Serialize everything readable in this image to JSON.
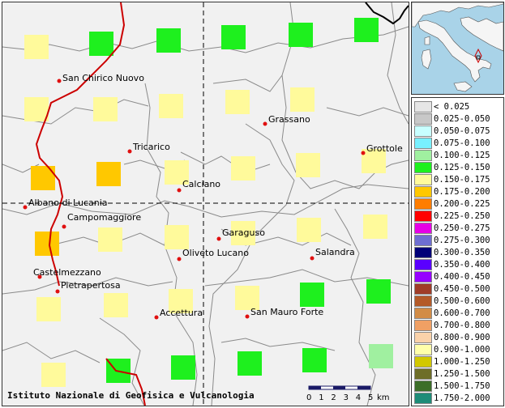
{
  "credit": "Istituto Nazionale di Geofisica e Vulcanologia",
  "scale_bar": {
    "ticks": [
      "0",
      "1",
      "2",
      "3",
      "4",
      "5"
    ],
    "unit": "km"
  },
  "towns": [
    {
      "name": "San Chirico Nuovo"
    },
    {
      "name": "Grassano"
    },
    {
      "name": "Tricarico"
    },
    {
      "name": "Grottole"
    },
    {
      "name": "Calciano"
    },
    {
      "name": "Albano di Lucania"
    },
    {
      "name": "Campomaggiore"
    },
    {
      "name": "Garaguso"
    },
    {
      "name": "Oliveto Lucano"
    },
    {
      "name": "Salandra"
    },
    {
      "name": "Castelmezzano"
    },
    {
      "name": "Pietrapertosa"
    },
    {
      "name": "Accettura"
    },
    {
      "name": "San Mauro Forte"
    }
  ],
  "legend": [
    {
      "label": "< 0.025",
      "color": "#e6e6e6"
    },
    {
      "label": "0.025-0.050",
      "color": "#c8c8c8"
    },
    {
      "label": "0.050-0.075",
      "color": "#c8ffff"
    },
    {
      "label": "0.075-0.100",
      "color": "#78f0ff"
    },
    {
      "label": "0.100-0.125",
      "color": "#a0f0a0"
    },
    {
      "label": "0.125-0.150",
      "color": "#1ef01e"
    },
    {
      "label": "0.150-0.175",
      "color": "#fffa9b"
    },
    {
      "label": "0.175-0.200",
      "color": "#ffc800"
    },
    {
      "label": "0.200-0.225",
      "color": "#ff7d00"
    },
    {
      "label": "0.225-0.250",
      "color": "#ff0000"
    },
    {
      "label": "0.250-0.275",
      "color": "#e600e6"
    },
    {
      "label": "0.275-0.300",
      "color": "#6e6ed2"
    },
    {
      "label": "0.300-0.350",
      "color": "#000078"
    },
    {
      "label": "0.350-0.400",
      "color": "#5a00ff"
    },
    {
      "label": "0.400-0.450",
      "color": "#9600ff"
    },
    {
      "label": "0.450-0.500",
      "color": "#a03c28"
    },
    {
      "label": "0.500-0.600",
      "color": "#b45a28"
    },
    {
      "label": "0.600-0.700",
      "color": "#d28c46"
    },
    {
      "label": "0.700-0.800",
      "color": "#f0a064"
    },
    {
      "label": "0.800-0.900",
      "color": "#fad2aa"
    },
    {
      "label": "0.900-1.000",
      "color": "#ffffaa"
    },
    {
      "label": "1.000-1.250",
      "color": "#d2c800"
    },
    {
      "label": "1.250-1.500",
      "color": "#6e6e28"
    },
    {
      "label": "1.500-1.750",
      "color": "#3c6e28"
    },
    {
      "label": "1.750-2.000",
      "color": "#1e8c78"
    }
  ],
  "grid_cells": [
    {
      "value_class": "0.150-0.175"
    },
    {
      "value_class": "0.125-0.150"
    },
    {
      "value_class": "0.125-0.150"
    },
    {
      "value_class": "0.125-0.150"
    },
    {
      "value_class": "0.125-0.150"
    },
    {
      "value_class": "0.125-0.150"
    },
    {
      "value_class": "0.150-0.175"
    },
    {
      "value_class": "0.150-0.175"
    },
    {
      "value_class": "0.150-0.175"
    },
    {
      "value_class": "0.150-0.175"
    },
    {
      "value_class": "0.150-0.175"
    },
    {
      "value_class": "0.175-0.200"
    },
    {
      "value_class": "0.175-0.200"
    },
    {
      "value_class": "0.150-0.175"
    },
    {
      "value_class": "0.150-0.175"
    },
    {
      "value_class": "0.150-0.175"
    },
    {
      "value_class": "0.150-0.175"
    },
    {
      "value_class": "0.175-0.200"
    },
    {
      "value_class": "0.150-0.175"
    },
    {
      "value_class": "0.150-0.175"
    },
    {
      "value_class": "0.150-0.175"
    },
    {
      "value_class": "0.150-0.175"
    },
    {
      "value_class": "0.150-0.175"
    },
    {
      "value_class": "0.150-0.175"
    },
    {
      "value_class": "0.150-0.175"
    },
    {
      "value_class": "0.150-0.175"
    },
    {
      "value_class": "0.150-0.175"
    },
    {
      "value_class": "0.125-0.150"
    },
    {
      "value_class": "0.125-0.150"
    },
    {
      "value_class": "0.150-0.175"
    },
    {
      "value_class": "0.125-0.150"
    },
    {
      "value_class": "0.125-0.150"
    },
    {
      "value_class": "0.125-0.150"
    },
    {
      "value_class": "0.125-0.150"
    },
    {
      "value_class": "0.100-0.125"
    }
  ]
}
